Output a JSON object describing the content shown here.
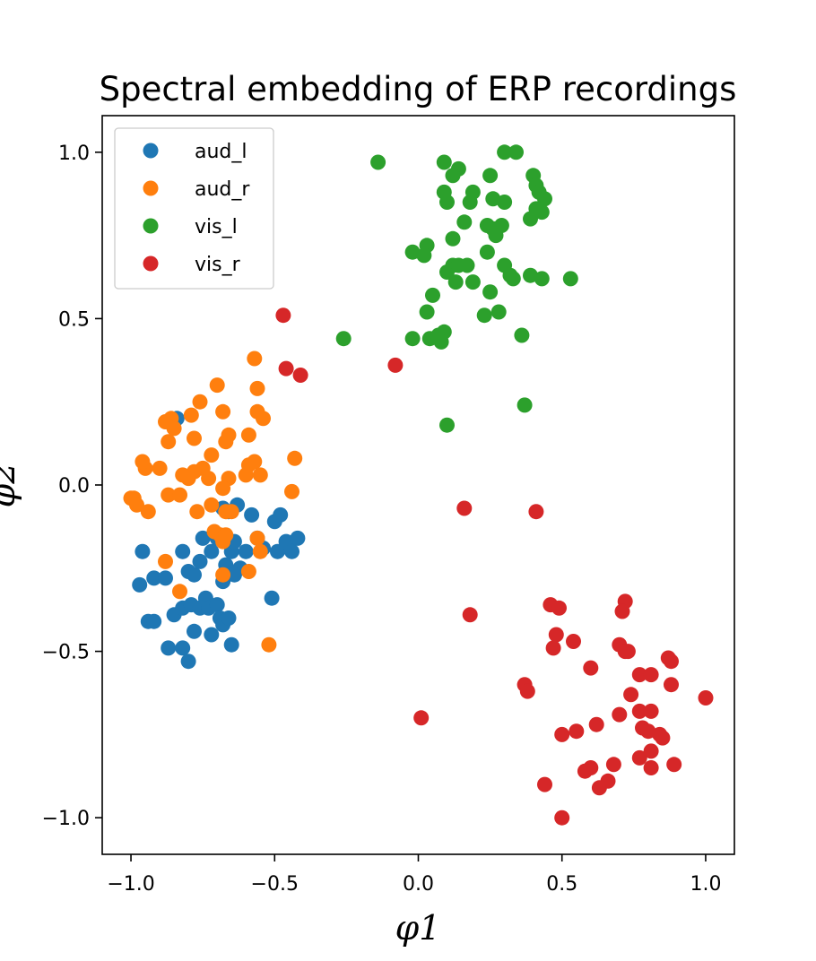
{
  "chart_data": {
    "type": "scatter",
    "title": "Spectral embedding of ERP recordings",
    "xlabel": "φ1",
    "ylabel": "φ2",
    "xlim": [
      -1.1,
      1.1
    ],
    "ylim": [
      -1.11,
      1.11
    ],
    "x_ticks": [
      -1.0,
      -0.5,
      0.0,
      0.5,
      1.0
    ],
    "y_ticks": [
      -1.0,
      -0.5,
      0.0,
      0.5,
      1.0
    ],
    "x_tick_labels": [
      "−1.0",
      "−0.5",
      "0.0",
      "0.5",
      "1.0"
    ],
    "y_tick_labels": [
      "−1.0",
      "−0.5",
      "0.0",
      "0.5",
      "1.0"
    ],
    "grid": false,
    "legend_position": "top-left",
    "series": [
      {
        "name": "aud_l",
        "color": "#1f77b4",
        "points": [
          [
            -0.84,
            0.2
          ],
          [
            -0.96,
            -0.2
          ],
          [
            -0.97,
            -0.3
          ],
          [
            -0.92,
            -0.28
          ],
          [
            -0.88,
            -0.28
          ],
          [
            -0.94,
            -0.41
          ],
          [
            -0.92,
            -0.41
          ],
          [
            -0.87,
            -0.49
          ],
          [
            -0.82,
            -0.49
          ],
          [
            -0.8,
            -0.53
          ],
          [
            -0.85,
            -0.39
          ],
          [
            -0.82,
            -0.37
          ],
          [
            -0.79,
            -0.36
          ],
          [
            -0.78,
            -0.44
          ],
          [
            -0.76,
            -0.37
          ],
          [
            -0.74,
            -0.34
          ],
          [
            -0.73,
            -0.37
          ],
          [
            -0.72,
            -0.45
          ],
          [
            -0.7,
            -0.36
          ],
          [
            -0.69,
            -0.4
          ],
          [
            -0.68,
            -0.42
          ],
          [
            -0.66,
            -0.4
          ],
          [
            -0.65,
            -0.48
          ],
          [
            -0.82,
            -0.2
          ],
          [
            -0.8,
            -0.26
          ],
          [
            -0.78,
            -0.27
          ],
          [
            -0.76,
            -0.23
          ],
          [
            -0.75,
            -0.16
          ],
          [
            -0.72,
            -0.2
          ],
          [
            -0.7,
            -0.16
          ],
          [
            -0.68,
            -0.29
          ],
          [
            -0.67,
            -0.24
          ],
          [
            -0.65,
            -0.2
          ],
          [
            -0.64,
            -0.17
          ],
          [
            -0.62,
            -0.25
          ],
          [
            -0.6,
            -0.2
          ],
          [
            -0.58,
            -0.09
          ],
          [
            -0.63,
            -0.06
          ],
          [
            -0.56,
            -0.16
          ],
          [
            -0.54,
            -0.19
          ],
          [
            -0.5,
            -0.11
          ],
          [
            -0.48,
            -0.09
          ],
          [
            -0.49,
            -0.2
          ],
          [
            -0.46,
            -0.17
          ],
          [
            -0.44,
            -0.2
          ],
          [
            -0.42,
            -0.16
          ],
          [
            -0.51,
            -0.34
          ],
          [
            -0.66,
            -0.08
          ],
          [
            -0.68,
            -0.07
          ],
          [
            -0.64,
            -0.27
          ]
        ]
      },
      {
        "name": "aud_r",
        "color": "#ff7f0e",
        "points": [
          [
            -0.57,
            0.38
          ],
          [
            -0.56,
            0.29
          ],
          [
            -0.56,
            0.22
          ],
          [
            -0.7,
            0.3
          ],
          [
            -0.76,
            0.25
          ],
          [
            -0.79,
            0.21
          ],
          [
            -0.68,
            0.22
          ],
          [
            -0.86,
            0.2
          ],
          [
            -0.88,
            0.19
          ],
          [
            -0.85,
            0.17
          ],
          [
            -0.87,
            0.13
          ],
          [
            -0.78,
            0.14
          ],
          [
            -0.66,
            0.15
          ],
          [
            -0.67,
            0.13
          ],
          [
            -0.59,
            0.15
          ],
          [
            -0.54,
            0.2
          ],
          [
            -0.72,
            0.09
          ],
          [
            -0.75,
            0.05
          ],
          [
            -0.73,
            0.02
          ],
          [
            -0.8,
            0.02
          ],
          [
            -0.82,
            0.03
          ],
          [
            -0.9,
            0.05
          ],
          [
            -0.95,
            0.05
          ],
          [
            -0.96,
            0.07
          ],
          [
            -0.78,
            0.04
          ],
          [
            -0.66,
            0.02
          ],
          [
            -0.68,
            -0.01
          ],
          [
            -0.6,
            0.03
          ],
          [
            -0.59,
            0.06
          ],
          [
            -0.57,
            0.07
          ],
          [
            -0.55,
            0.03
          ],
          [
            -0.43,
            0.08
          ],
          [
            -0.99,
            -0.04
          ],
          [
            -1.0,
            -0.04
          ],
          [
            -0.98,
            -0.06
          ],
          [
            -0.94,
            -0.08
          ],
          [
            -0.87,
            -0.03
          ],
          [
            -0.83,
            -0.03
          ],
          [
            -0.77,
            -0.08
          ],
          [
            -0.72,
            -0.06
          ],
          [
            -0.67,
            -0.08
          ],
          [
            -0.65,
            -0.08
          ],
          [
            -0.44,
            -0.02
          ],
          [
            -0.71,
            -0.14
          ],
          [
            -0.69,
            -0.15
          ],
          [
            -0.68,
            -0.17
          ],
          [
            -0.67,
            -0.15
          ],
          [
            -0.56,
            -0.16
          ],
          [
            -0.55,
            -0.2
          ],
          [
            -0.88,
            -0.23
          ],
          [
            -0.83,
            -0.32
          ],
          [
            -0.68,
            -0.27
          ],
          [
            -0.59,
            -0.26
          ],
          [
            -0.52,
            -0.48
          ]
        ]
      },
      {
        "name": "vis_l",
        "color": "#2ca02c",
        "points": [
          [
            -0.14,
            0.97
          ],
          [
            0.09,
            0.97
          ],
          [
            0.14,
            0.95
          ],
          [
            0.3,
            1.0
          ],
          [
            0.34,
            1.0
          ],
          [
            0.12,
            0.93
          ],
          [
            0.25,
            0.93
          ],
          [
            0.4,
            0.93
          ],
          [
            0.41,
            0.9
          ],
          [
            0.42,
            0.88
          ],
          [
            0.09,
            0.88
          ],
          [
            0.19,
            0.88
          ],
          [
            0.18,
            0.85
          ],
          [
            0.1,
            0.85
          ],
          [
            0.26,
            0.86
          ],
          [
            0.3,
            0.85
          ],
          [
            0.44,
            0.86
          ],
          [
            0.41,
            0.83
          ],
          [
            0.43,
            0.82
          ],
          [
            0.39,
            0.8
          ],
          [
            0.16,
            0.79
          ],
          [
            0.24,
            0.78
          ],
          [
            0.26,
            0.77
          ],
          [
            0.29,
            0.78
          ],
          [
            0.27,
            0.75
          ],
          [
            0.12,
            0.74
          ],
          [
            0.03,
            0.72
          ],
          [
            0.02,
            0.69
          ],
          [
            -0.02,
            0.7
          ],
          [
            0.24,
            0.7
          ],
          [
            0.1,
            0.64
          ],
          [
            0.12,
            0.66
          ],
          [
            0.14,
            0.66
          ],
          [
            0.17,
            0.66
          ],
          [
            0.13,
            0.61
          ],
          [
            0.19,
            0.61
          ],
          [
            0.3,
            0.66
          ],
          [
            0.32,
            0.63
          ],
          [
            0.33,
            0.62
          ],
          [
            0.39,
            0.63
          ],
          [
            0.43,
            0.62
          ],
          [
            0.53,
            0.62
          ],
          [
            0.25,
            0.58
          ],
          [
            0.05,
            0.57
          ],
          [
            0.03,
            0.52
          ],
          [
            0.23,
            0.51
          ],
          [
            0.28,
            0.52
          ],
          [
            -0.26,
            0.44
          ],
          [
            -0.02,
            0.44
          ],
          [
            0.04,
            0.44
          ],
          [
            0.07,
            0.45
          ],
          [
            0.09,
            0.46
          ],
          [
            0.08,
            0.43
          ],
          [
            0.36,
            0.45
          ],
          [
            0.37,
            0.24
          ],
          [
            0.1,
            0.18
          ]
        ]
      },
      {
        "name": "vis_r",
        "color": "#d62728",
        "points": [
          [
            -0.47,
            0.51
          ],
          [
            -0.46,
            0.35
          ],
          [
            -0.41,
            0.33
          ],
          [
            -0.08,
            0.36
          ],
          [
            0.16,
            -0.07
          ],
          [
            0.41,
            -0.08
          ],
          [
            0.18,
            -0.39
          ],
          [
            0.01,
            -0.7
          ],
          [
            0.46,
            -0.36
          ],
          [
            0.49,
            -0.37
          ],
          [
            0.72,
            -0.35
          ],
          [
            0.71,
            -0.38
          ],
          [
            0.48,
            -0.45
          ],
          [
            0.54,
            -0.47
          ],
          [
            0.47,
            -0.49
          ],
          [
            0.7,
            -0.48
          ],
          [
            0.72,
            -0.5
          ],
          [
            0.73,
            -0.5
          ],
          [
            0.87,
            -0.52
          ],
          [
            0.88,
            -0.53
          ],
          [
            0.6,
            -0.55
          ],
          [
            0.77,
            -0.57
          ],
          [
            0.81,
            -0.57
          ],
          [
            0.37,
            -0.6
          ],
          [
            0.38,
            -0.62
          ],
          [
            0.88,
            -0.6
          ],
          [
            0.74,
            -0.63
          ],
          [
            1.0,
            -0.64
          ],
          [
            0.7,
            -0.69
          ],
          [
            0.77,
            -0.68
          ],
          [
            0.81,
            -0.68
          ],
          [
            0.62,
            -0.72
          ],
          [
            0.78,
            -0.73
          ],
          [
            0.8,
            -0.74
          ],
          [
            0.84,
            -0.75
          ],
          [
            0.85,
            -0.76
          ],
          [
            0.5,
            -0.75
          ],
          [
            0.55,
            -0.74
          ],
          [
            0.81,
            -0.8
          ],
          [
            0.77,
            -0.82
          ],
          [
            0.68,
            -0.84
          ],
          [
            0.89,
            -0.84
          ],
          [
            0.6,
            -0.85
          ],
          [
            0.58,
            -0.86
          ],
          [
            0.81,
            -0.85
          ],
          [
            0.66,
            -0.89
          ],
          [
            0.63,
            -0.91
          ],
          [
            0.44,
            -0.9
          ],
          [
            0.5,
            -1.0
          ]
        ]
      }
    ]
  }
}
